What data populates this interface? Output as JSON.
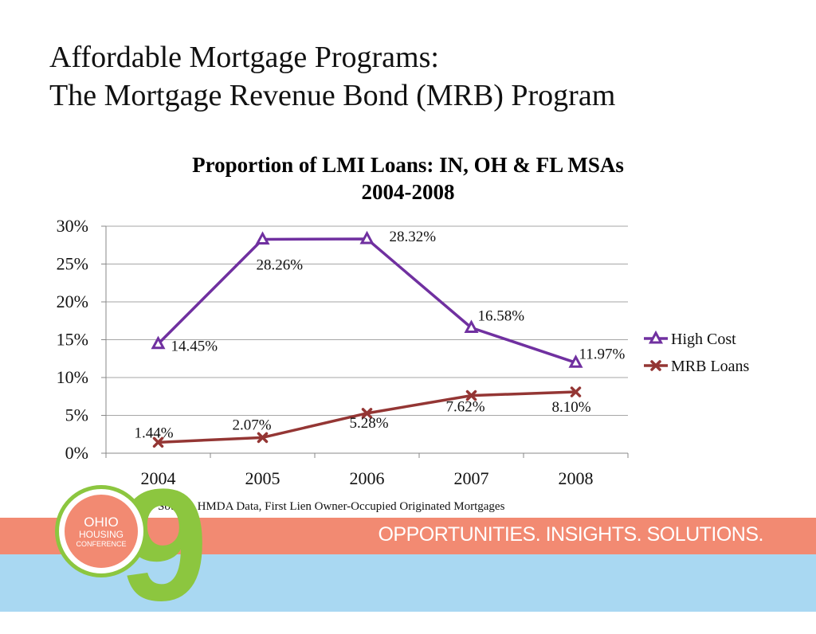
{
  "slide": {
    "title_line1": "Affordable Mortgage Programs:",
    "title_line2": "The Mortgage Revenue Bond (MRB) Program",
    "source_note": "Source: HMDA Data, First Lien Owner-Occupied Originated Mortgages",
    "tagline": "OPPORTUNITIES. INSIGHTS. SOLUTIONS.",
    "logo": {
      "line1": "OHIO",
      "line2": "HOUSING",
      "line3": "CONFERENCE",
      "numeral": "9"
    },
    "colors": {
      "band": "#f28a72",
      "blue": "#a9d8f2",
      "logo_green": "#8cc63f"
    }
  },
  "chart_data": {
    "type": "line",
    "title_line1": "Proportion of LMI Loans: IN, OH & FL MSAs",
    "title_line2": "2004-2008",
    "categories": [
      "2004",
      "2005",
      "2006",
      "2007",
      "2008"
    ],
    "ylim": [
      0,
      30
    ],
    "yticks": [
      0,
      5,
      10,
      15,
      20,
      25,
      30
    ],
    "ytick_labels": [
      "0%",
      "5%",
      "10%",
      "15%",
      "20%",
      "25%",
      "30%"
    ],
    "grid": true,
    "legend_position": "right",
    "series": [
      {
        "name": "High Cost",
        "color": "#7030a0",
        "marker": "triangle",
        "values": [
          14.45,
          28.26,
          28.32,
          16.58,
          11.97
        ],
        "labels": [
          "14.45%",
          "28.26%",
          "28.32%",
          "16.58%",
          "11.97%"
        ]
      },
      {
        "name": "MRB Loans",
        "color": "#943634",
        "marker": "x",
        "values": [
          1.44,
          2.07,
          5.28,
          7.62,
          8.1
        ],
        "labels": [
          "1.44%",
          "2.07%",
          "5.28%",
          "7.62%",
          "8.10%"
        ]
      }
    ]
  }
}
